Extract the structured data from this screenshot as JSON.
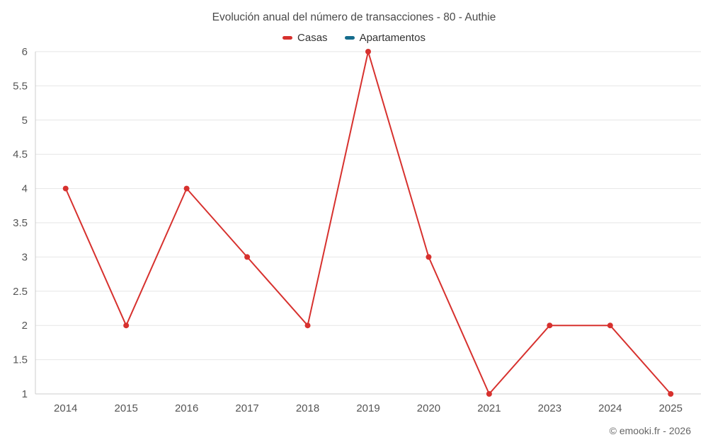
{
  "chart": {
    "title": "Evolución anual del número de transacciones - 80 - Authie"
  },
  "footer": {
    "copyright": "© emooki.fr - 2026"
  },
  "chart_data": {
    "type": "line",
    "title": "Evolución anual del número de transacciones - 80 - Authie",
    "categories": [
      "2014",
      "2015",
      "2016",
      "2017",
      "2018",
      "2019",
      "2020",
      "2021",
      "2023",
      "2024",
      "2025"
    ],
    "series": [
      {
        "name": "Casas",
        "color": "#d7312e",
        "values": [
          4,
          2,
          4,
          3,
          2,
          6,
          3,
          1,
          2,
          2,
          1
        ]
      },
      {
        "name": "Apartamentos",
        "color": "#156c8c",
        "values": []
      }
    ],
    "xlabel": "",
    "ylabel": "",
    "ylim": [
      1,
      6
    ],
    "ytick_step": 0.5,
    "grid": true,
    "grid_color": "#e6e6e6",
    "axis_line_color": "#cccccc",
    "legend_position": "top",
    "marker_radius": 4,
    "line_width": 2
  }
}
